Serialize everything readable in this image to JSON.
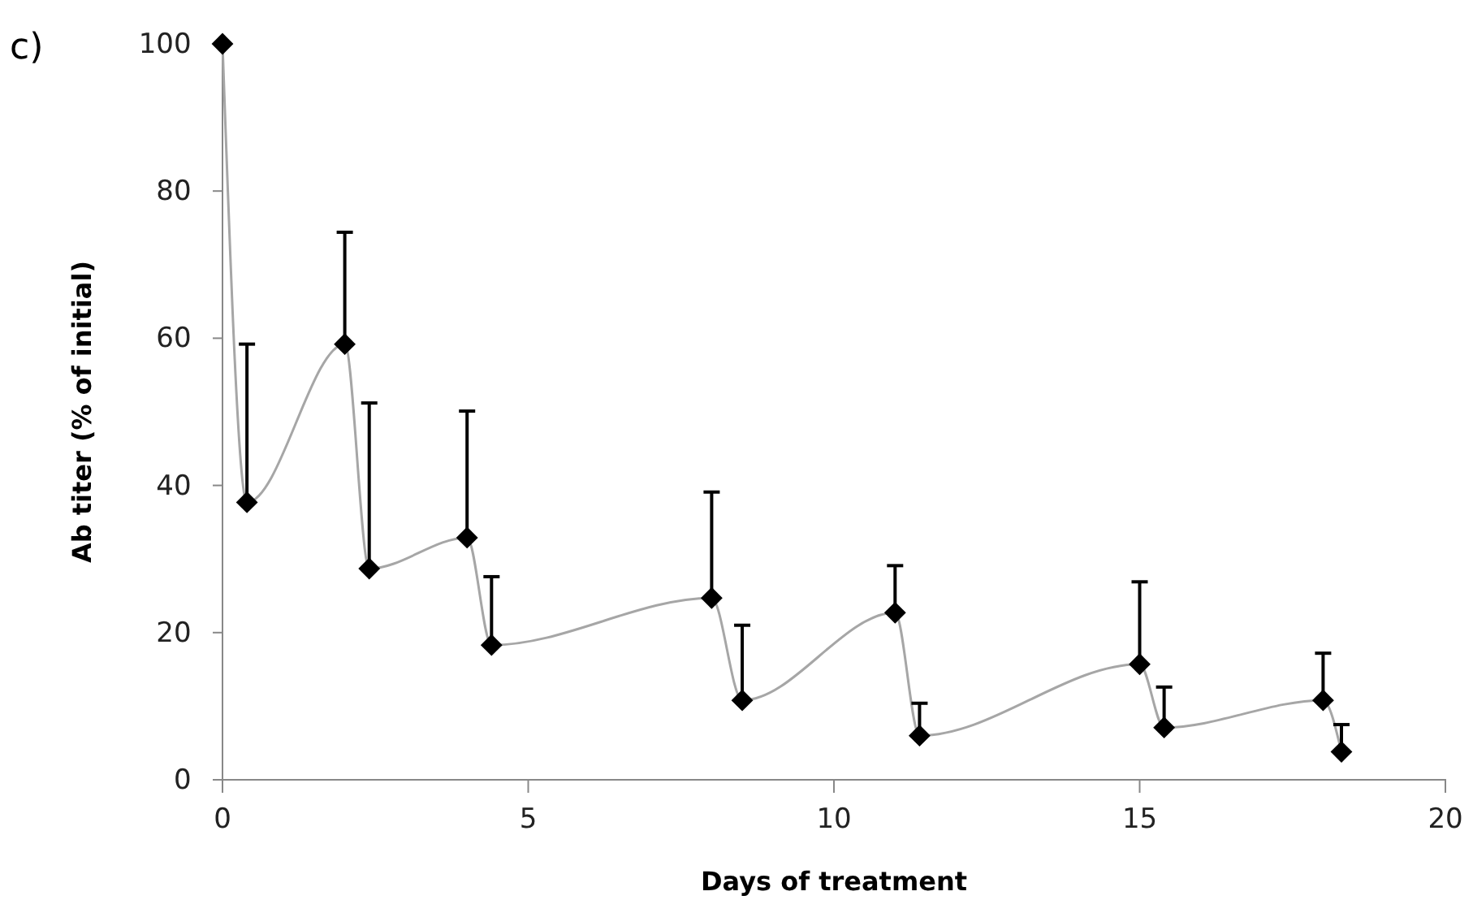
{
  "chart_data": {
    "type": "scatter",
    "xlabel": "Days of treatment",
    "ylabel": "Ab titer (% of initial)",
    "annotations": [
      "c)"
    ],
    "x": [
      0,
      0.4,
      2,
      2.4,
      4,
      4.4,
      8,
      8.5,
      11,
      11.4,
      15,
      15.4,
      18,
      18.3
    ],
    "series": [
      {
        "type": "line",
        "color": "#a6a6a6",
        "marker": "none",
        "values": [
          100,
          37.7,
          59.2,
          28.7,
          32.9,
          18.3,
          24.7,
          10.8,
          22.7,
          6.0,
          15.7,
          7.1,
          10.8,
          3.8
        ]
      },
      {
        "color": "#000000",
        "marker": "diamond",
        "values": [
          100,
          37.7,
          59.2,
          28.7,
          32.9,
          18.3,
          24.7,
          10.8,
          22.7,
          6.0,
          15.7,
          7.1,
          10.8,
          3.8
        ],
        "errors": [
          null,
          [
            37.7,
            59.2
          ],
          [
            59.2,
            74.4
          ],
          [
            28.7,
            51.2
          ],
          [
            32.9,
            50.1
          ],
          [
            18.3,
            27.6
          ],
          [
            24.7,
            39.1
          ],
          [
            10.8,
            21.0
          ],
          [
            22.7,
            29.1
          ],
          [
            6.0,
            10.4
          ],
          [
            15.7,
            26.9
          ],
          [
            7.1,
            12.6
          ],
          [
            10.8,
            17.2
          ],
          [
            3.8,
            7.5
          ]
        ]
      }
    ],
    "xlim": [
      0,
      20
    ],
    "xticks": [
      0,
      5,
      10,
      15,
      20
    ],
    "ylim": [
      0,
      100
    ],
    "yticks": [
      0,
      20,
      40,
      60,
      80,
      100
    ],
    "grid": false
  }
}
